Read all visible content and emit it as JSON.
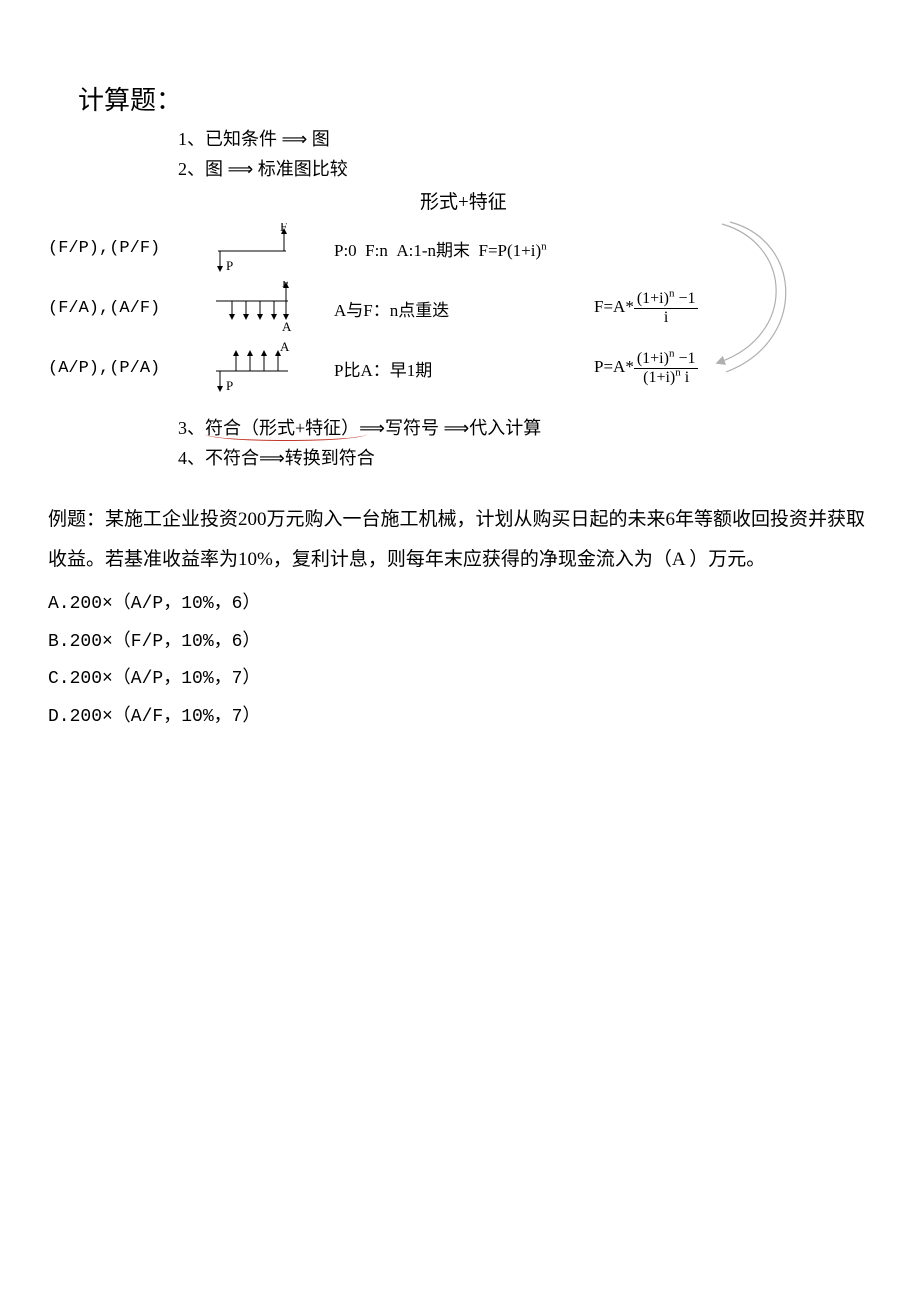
{
  "title": "计算题：",
  "steps": {
    "s1": "1、已知条件 ⟹ 图",
    "s2": "2、图 ⟹ 标准图比较",
    "subhead": "形式+特征",
    "s3_prefix": "3、",
    "s3_underlined": "符合（形式+特征）",
    "s3_suffix": "⟹写符号 ⟹代入计算",
    "s4": "4、不符合⟹转换到符合"
  },
  "rows": [
    {
      "factor": "(F/P),(P/F)",
      "feature_html": "P:0&nbsp;&nbsp;F:n&nbsp;&nbsp;A:1-n期末&nbsp;&nbsp;F=P(1+i)<sup>n</sup>",
      "formula_html": "",
      "diagram": {
        "type": "fp",
        "labels": {
          "P": "P",
          "F": "F"
        }
      }
    },
    {
      "factor": "(F/A),(A/F)",
      "feature_html": "A与F：n点重迭",
      "formula_html": "F=A*<span class=\"frac\"><span class=\"num\">(1+i)<sup>n</sup> −1</span><span class=\"den\">i</span></span>",
      "diagram": {
        "type": "fa",
        "labels": {
          "A": "A",
          "F": "F"
        }
      }
    },
    {
      "factor": "(A/P),(P/A)",
      "feature_html": "P比A：早1期",
      "formula_html": "P=A*<span class=\"frac\"><span class=\"num\">(1+i)<sup>n</sup> −1</span><span class=\"den\">(1+i)<sup>n</sup> i</span></span>",
      "diagram": {
        "type": "ap",
        "labels": {
          "P": "P",
          "A": "A"
        }
      }
    }
  ],
  "diagram_style": {
    "stroke": "#000000",
    "stroke_width": 1,
    "font_family": "Times New Roman",
    "font_size": 13
  },
  "example": {
    "stem": "例题：某施工企业投资200万元购入一台施工机械，计划从购买日起的未来6年等额收回投资并获取收益。若基准收益率为10%，复利计息，则每年末应获得的净现金流入为（A ）万元。",
    "options": [
      "A.200×（A/P，10%，6）",
      "B.200×（F/P，10%，6）",
      "C.200×（A/P，10%，7）",
      "D.200×（A/F，10%，7）"
    ]
  },
  "big_arrow": {
    "stroke": "#b0b0b0",
    "stroke_width": 1.2
  }
}
